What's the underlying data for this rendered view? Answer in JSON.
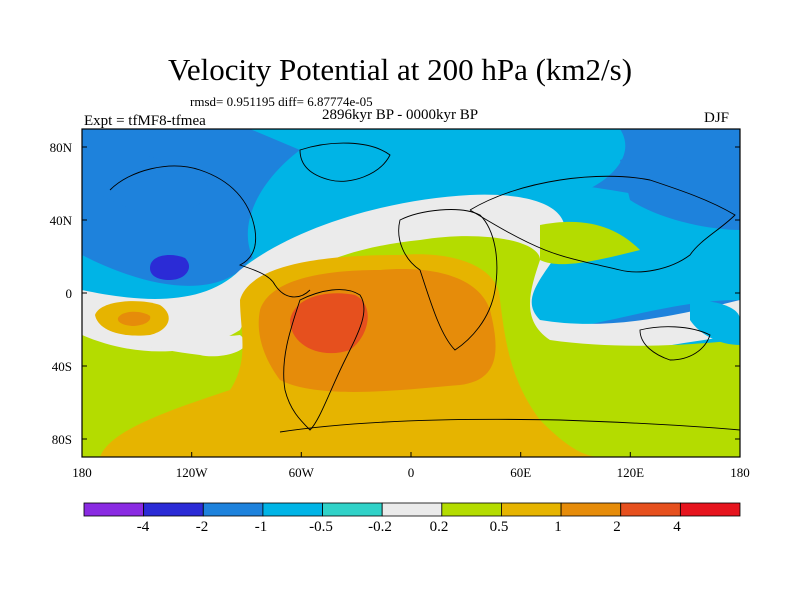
{
  "header": {
    "title": "Velocity Potential at 200 hPa (km2/s)",
    "stats": "rmsd= 0.951195 diff= 6.87774e-05",
    "period": "2896kyr BP - 0000kyr BP",
    "experiment": "Expt = tfMF8-tfmea",
    "season": "DJF"
  },
  "axes": {
    "y_ticks": [
      "80N",
      "40N",
      "0",
      "40S",
      "80S"
    ],
    "x_ticks": [
      "180",
      "120W",
      "60W",
      "0",
      "60E",
      "120E",
      "180"
    ]
  },
  "colorbar": {
    "labels": [
      "-4",
      "-2",
      "-1",
      "-0.5",
      "-0.2",
      "0.2",
      "0.5",
      "1",
      "2",
      "4"
    ],
    "colors": [
      "#8a2be2",
      "#2b2bd6",
      "#1e82dc",
      "#00b4e6",
      "#30d2c8",
      "#ebebeb",
      "#b4dc00",
      "#e6b400",
      "#e68c0a",
      "#e6501e",
      "#e6141e"
    ]
  }
}
